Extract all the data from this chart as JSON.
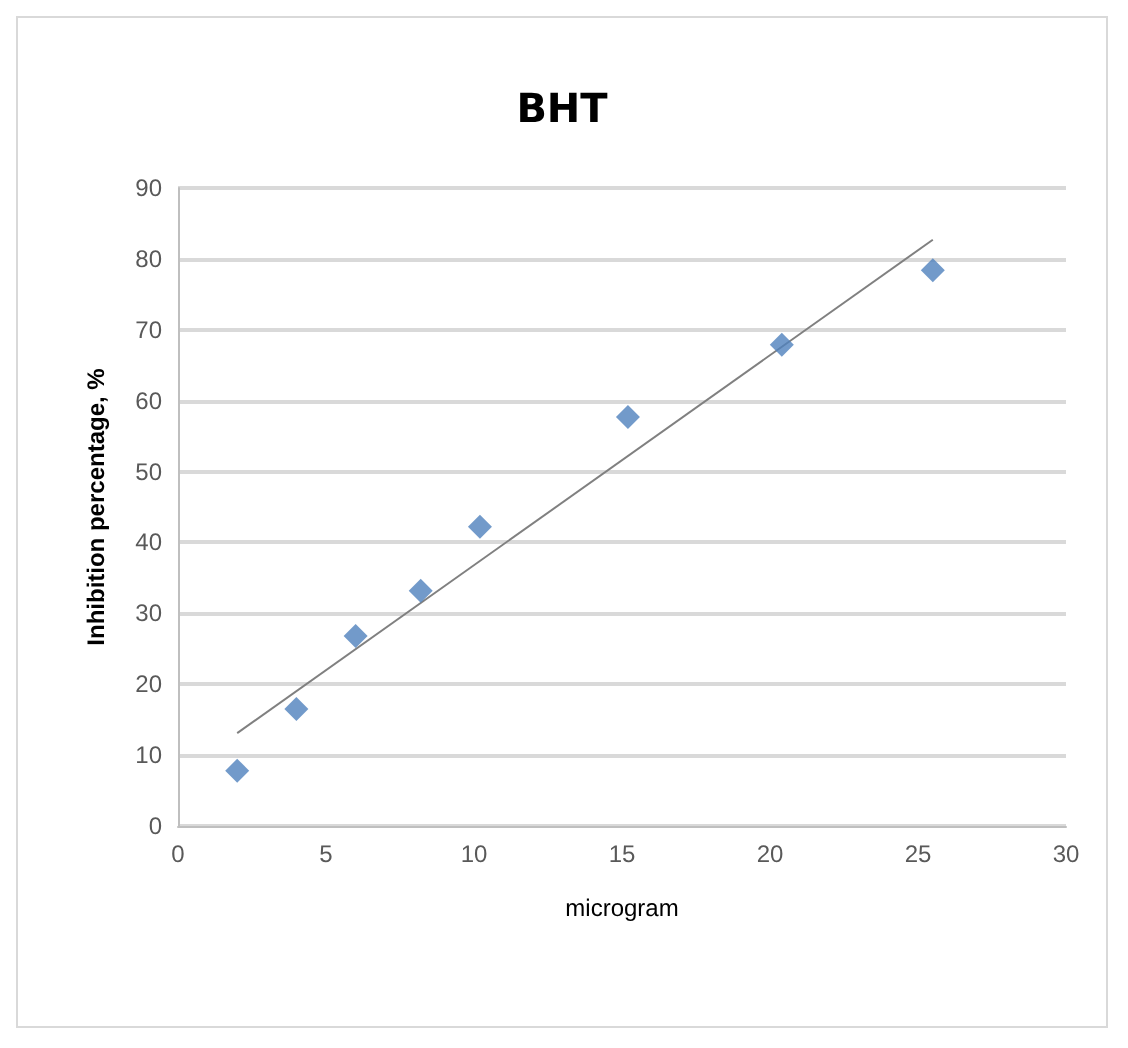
{
  "chart_data": {
    "type": "scatter",
    "title": "BHT",
    "xlabel": "microgram",
    "ylabel": "Inhibition percentage, %",
    "xlim": [
      0,
      30
    ],
    "xticks": [
      0,
      5,
      10,
      15,
      20,
      25,
      30
    ],
    "ylim": [
      0,
      90
    ],
    "yticks": [
      0,
      10,
      20,
      30,
      40,
      50,
      60,
      70,
      80,
      90
    ],
    "grid": "y",
    "series": [
      {
        "color": "#4f81bd",
        "marker": "diamond",
        "x": [
          2,
          4,
          6,
          8.2,
          10.2,
          15.2,
          20.4,
          25.5
        ],
        "values": [
          7.8,
          16.5,
          26.8,
          33.2,
          42.2,
          57.7,
          67.9,
          78.4
        ]
      },
      {
        "type": "line",
        "color": "#808080",
        "marker": "none",
        "x": [
          2,
          25.5
        ],
        "values": [
          13.1,
          82.7
        ]
      }
    ]
  }
}
